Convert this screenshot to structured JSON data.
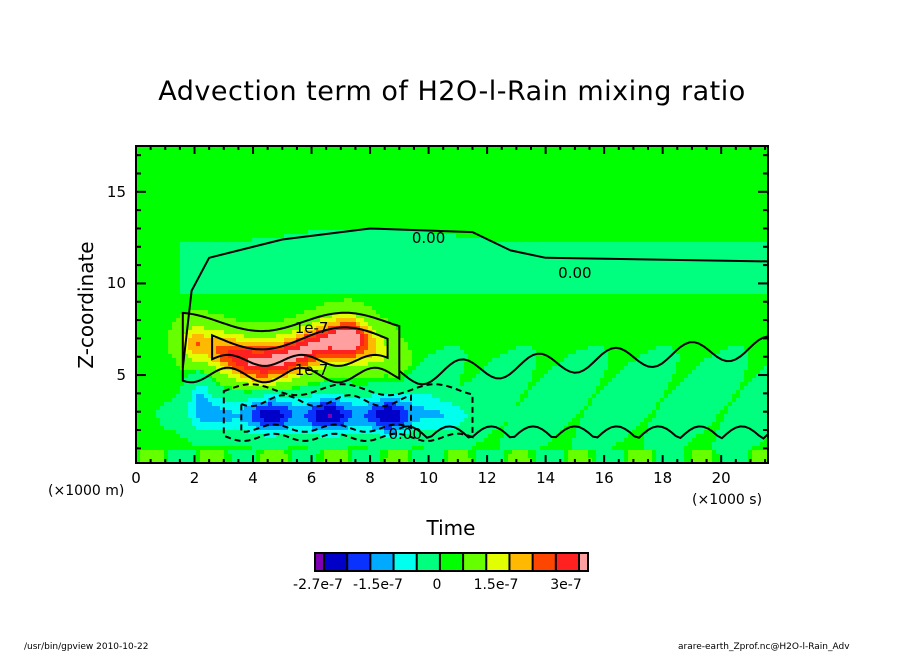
{
  "chart_data": {
    "type": "heatmap",
    "title": "Advection term of H2O-l-Rain mixing ratio",
    "xlabel": "Time",
    "ylabel": "Z-coordinate",
    "x_unit": "(×1000 s)",
    "y_unit": "(×1000 m)",
    "xlim": [
      0,
      21.6
    ],
    "ylim": [
      0.2,
      17.5
    ],
    "x_ticks": [
      "0",
      "2",
      "4",
      "6",
      "8",
      "10",
      "12",
      "14",
      "16",
      "18",
      "20"
    ],
    "x_tick_values": [
      0,
      2,
      4,
      6,
      8,
      10,
      12,
      14,
      16,
      18,
      20
    ],
    "y_ticks": [
      "5",
      "10",
      "15"
    ],
    "y_tick_values": [
      5,
      10,
      15
    ],
    "contour_labels": [
      "0.00",
      "0.00",
      "1e-7",
      "1e-7",
      "0.00"
    ],
    "colorbar": {
      "colors": [
        "#7f00b2",
        "#0000c8",
        "#0a32ff",
        "#00aaff",
        "#00ffee",
        "#00ff7f",
        "#00ff00",
        "#66ff00",
        "#e1ff00",
        "#ffb900",
        "#ff4600",
        "#ff2020",
        "#ff9f9f"
      ],
      "tick_labels": [
        "-2.7e-7",
        "-1.5e-7",
        "0",
        "1.5e-7",
        "3e-7"
      ],
      "tick_values": [
        -2.7e-07,
        -1.5e-07,
        0,
        1.5e-07,
        3e-07
      ]
    },
    "features": [
      {
        "name": "positive-band",
        "description_level": "max ~3e-7",
        "x_range": [
          1.6,
          9.0
        ],
        "z_range": [
          5.0,
          8.5
        ]
      },
      {
        "name": "negative-band",
        "description_level": "min ~-2.7e-7",
        "x_range": [
          1.5,
          11.8
        ],
        "z_range": [
          1.0,
          4.5
        ]
      },
      {
        "name": "upper-near-zero-boundary",
        "x_range": [
          1.5,
          21.6
        ],
        "z_range": [
          10.5,
          13.5
        ]
      }
    ]
  },
  "footer": {
    "left": "/usr/bin/gpview   2010-10-22",
    "right": "arare-earth_Zprof.nc@H2O-l-Rain_Adv"
  }
}
